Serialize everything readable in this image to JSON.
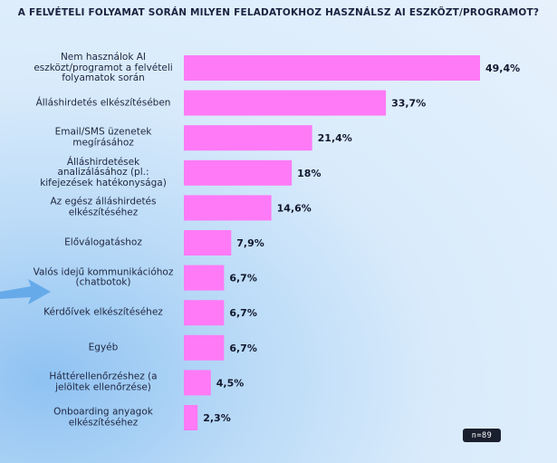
{
  "chart_data": {
    "type": "bar",
    "orientation": "horizontal",
    "title": "A FELVÉTELI FOLYAMAT SORÁN MILYEN FELADATOKHOZ HASZNÁLSZ AI ESZKÖZT/PROGRAMOT?",
    "categories": [
      "Nem használok AI eszközt/programot a felvételi folyamatok során",
      "Álláshirdetés elkészítésében",
      "Email/SMS üzenetek megírásához",
      "Álláshirdetések analizálásához (pl.: kifejezések hatékonysága)",
      "Az egész álláshirdetés elkészítéséhez",
      "Előválogatáshoz",
      "Valós idejű kommunikációhoz (chatbotok)",
      "Kérdőívek elkészítéséhez",
      "Egyéb",
      "Háttérellenőrzéshez (a jelöltek ellenőrzése)",
      "Onboarding anyagok elkészítéséhez"
    ],
    "values": [
      49.4,
      33.7,
      21.4,
      18,
      14.6,
      7.9,
      6.7,
      6.7,
      6.7,
      4.5,
      2.3
    ],
    "value_labels": [
      "49,4%",
      "33,7%",
      "21,4%",
      "18%",
      "14,6%",
      "7,9%",
      "6,7%",
      "6,7%",
      "6,7%",
      "4,5%",
      "2,3%"
    ],
    "xlim": [
      0,
      49.4
    ],
    "bar_color": "#ff7af6",
    "grid": false,
    "xlabel": "",
    "ylabel": ""
  },
  "sample_size_label": "n=89",
  "colors": {
    "text": "#1f2640",
    "bar": "#ff7af6",
    "badge_bg": "#1a1f2e"
  },
  "decor": {
    "arrow": "arrow-right-icon"
  }
}
